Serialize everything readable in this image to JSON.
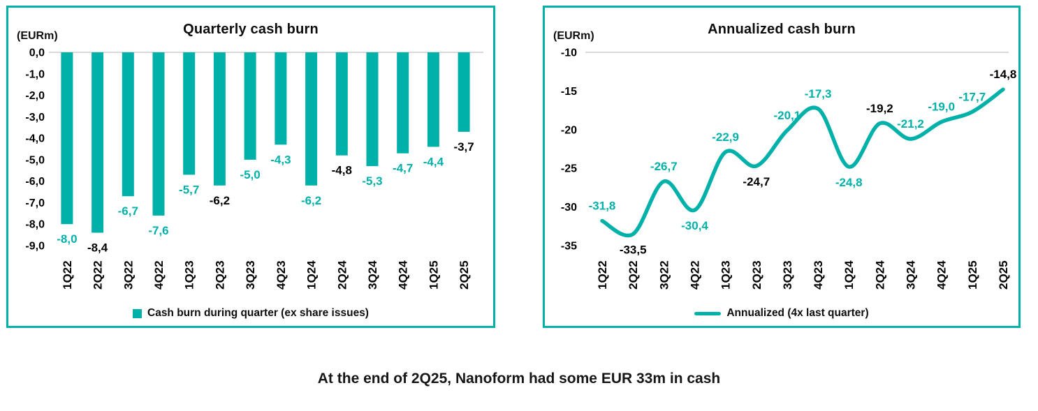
{
  "colors": {
    "accent": "#00B1A9",
    "gridline": "#D9D9D9",
    "text": "#000000"
  },
  "footer": {
    "text": "At the end of 2Q25, Nanoform had some EUR 33m in cash"
  },
  "chart_data": [
    {
      "type": "bar",
      "title": "Quarterly cash burn",
      "unit_label": "(EURm)",
      "categories": [
        "1Q22",
        "2Q22",
        "3Q22",
        "4Q22",
        "1Q23",
        "2Q23",
        "3Q23",
        "4Q23",
        "1Q24",
        "2Q24",
        "3Q24",
        "4Q24",
        "1Q25",
        "2Q25"
      ],
      "values": [
        -8.0,
        -8.4,
        -6.7,
        -7.6,
        -5.7,
        -6.2,
        -5.0,
        -4.3,
        -6.2,
        -4.8,
        -5.3,
        -4.7,
        -4.4,
        -3.7
      ],
      "value_labels": [
        "-8,0",
        "-8,4",
        "-6,7",
        "-7,6",
        "-5,7",
        "-6,2",
        "-5,0",
        "-4,3",
        "-6,2",
        "-4,8",
        "-5,3",
        "-4,7",
        "-4,4",
        "-3,7"
      ],
      "value_label_colors": [
        "teal",
        "black",
        "teal",
        "teal",
        "teal",
        "black",
        "teal",
        "teal",
        "teal",
        "black",
        "teal",
        "teal",
        "teal",
        "black"
      ],
      "value_label_positions": [
        "below",
        "below",
        "below",
        "below",
        "below",
        "below",
        "below",
        "below",
        "below",
        "below",
        "below",
        "below",
        "below",
        "below"
      ],
      "ylim": [
        -9,
        0
      ],
      "yticks": [
        {
          "label": "0,0",
          "value": 0
        },
        {
          "label": "-1,0",
          "value": -1
        },
        {
          "label": "-2,0",
          "value": -2
        },
        {
          "label": "-3,0",
          "value": -3
        },
        {
          "label": "-4,0",
          "value": -4
        },
        {
          "label": "-5,0",
          "value": -5
        },
        {
          "label": "-6,0",
          "value": -6
        },
        {
          "label": "-7,0",
          "value": -7
        },
        {
          "label": "-8,0",
          "value": -8
        },
        {
          "label": "-9,0",
          "value": -9
        }
      ],
      "grid": "horizontal line at 0 only",
      "bar_color": "#00B1A9",
      "legend": {
        "label": "Cash burn during quarter (ex share issues)",
        "marker": "square",
        "position": "bottom-center"
      }
    },
    {
      "type": "line",
      "title": "Annualized cash burn",
      "unit_label": "(EURm)",
      "categories": [
        "1Q22",
        "2Q22",
        "3Q22",
        "4Q22",
        "1Q23",
        "2Q23",
        "3Q23",
        "4Q23",
        "1Q24",
        "2Q24",
        "3Q24",
        "4Q24",
        "1Q25",
        "2Q25"
      ],
      "values": [
        -31.8,
        -33.5,
        -26.7,
        -30.4,
        -22.9,
        -24.7,
        -20.1,
        -17.3,
        -24.8,
        -19.2,
        -21.2,
        -19.0,
        -17.7,
        -14.8
      ],
      "value_labels": [
        "-31,8",
        "-33,5",
        "-26,7",
        "-30,4",
        "-22,9",
        "-24,7",
        "-20,1",
        "-17,3",
        "-24,8",
        "-19,2",
        "-21,2",
        "-19,0",
        "-17,7",
        "-14,8"
      ],
      "value_label_colors": [
        "teal",
        "black",
        "teal",
        "teal",
        "teal",
        "black",
        "teal",
        "teal",
        "teal",
        "black",
        "teal",
        "teal",
        "teal",
        "black"
      ],
      "value_label_positions": [
        "above",
        "below",
        "above",
        "below",
        "above",
        "below",
        "above",
        "above",
        "below",
        "above",
        "above",
        "above",
        "above",
        "above"
      ],
      "ylim": [
        -35,
        -10
      ],
      "yticks": [
        {
          "label": "-10",
          "value": -10
        },
        {
          "label": "-15",
          "value": -15
        },
        {
          "label": "-20",
          "value": -20
        },
        {
          "label": "-25",
          "value": -25
        },
        {
          "label": "-30",
          "value": -30
        },
        {
          "label": "-35",
          "value": -35
        }
      ],
      "grid": "horizontal line at -10 only",
      "smooth": true,
      "line_color": "#00B1A9",
      "legend": {
        "label": "Annualized (4x last quarter)",
        "marker": "line",
        "position": "bottom-center"
      }
    }
  ]
}
